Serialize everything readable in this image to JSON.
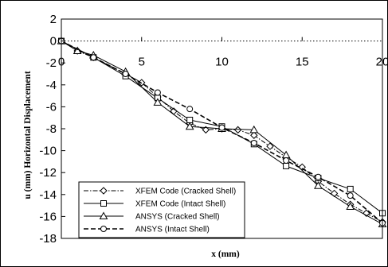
{
  "chart_data": {
    "type": "line",
    "title": "",
    "xlabel": "x (mm)",
    "ylabel": "u (mm) Horizontal Displacement",
    "xlim": [
      0,
      20
    ],
    "ylim": [
      -18,
      2
    ],
    "xticks": [
      0,
      5,
      10,
      15,
      20
    ],
    "yticks": [
      2,
      0,
      -2,
      -4,
      -6,
      -8,
      -10,
      -12,
      -14,
      -16,
      -18
    ],
    "grid": false,
    "zero_line": "dotted",
    "legend_position": "bottom-left",
    "series": [
      {
        "name": "XFEM Code (Cracked Shell)",
        "marker": "diamond",
        "line": "dash-dot",
        "x": [
          0,
          1,
          2,
          4,
          5,
          6,
          7,
          8,
          9,
          10,
          11,
          12,
          13,
          14,
          15,
          16,
          17,
          18,
          19,
          20
        ],
        "y": [
          0,
          -0.9,
          -1.5,
          -3.0,
          -3.8,
          -5.1,
          -6.4,
          -7.5,
          -8.1,
          -8.0,
          -8.1,
          -8.6,
          -9.6,
          -10.6,
          -11.5,
          -12.8,
          -13.9,
          -14.9,
          -15.7,
          -16.5
        ]
      },
      {
        "name": "XFEM Code (Intact Shell)",
        "marker": "square",
        "line": "solid",
        "x": [
          0,
          2,
          4,
          6,
          8,
          10,
          12,
          14,
          16,
          18,
          20
        ],
        "y": [
          0,
          -1.5,
          -3.2,
          -5.2,
          -7.2,
          -7.8,
          -9.4,
          -11.4,
          -12.5,
          -13.5,
          -15.7
        ]
      },
      {
        "name": "ANSYS (Cracked Shell)",
        "marker": "triangle",
        "line": "solid",
        "x": [
          0,
          1,
          2,
          4,
          6,
          8,
          10,
          12,
          14,
          16,
          18,
          20
        ],
        "y": [
          0,
          -0.9,
          -1.3,
          -2.8,
          -5.6,
          -7.8,
          -8.0,
          -8.1,
          -10.4,
          -13.2,
          -15.1,
          -16.7
        ]
      },
      {
        "name": "ANSYS (Intact Shell)",
        "marker": "circle",
        "line": "dashed",
        "x": [
          0,
          2,
          4,
          6,
          8,
          10,
          12,
          14,
          16,
          18,
          20
        ],
        "y": [
          0,
          -1.5,
          -3.0,
          -4.7,
          -6.2,
          -7.9,
          -9.3,
          -10.9,
          -12.4,
          -14.1,
          -16.6
        ]
      }
    ]
  }
}
